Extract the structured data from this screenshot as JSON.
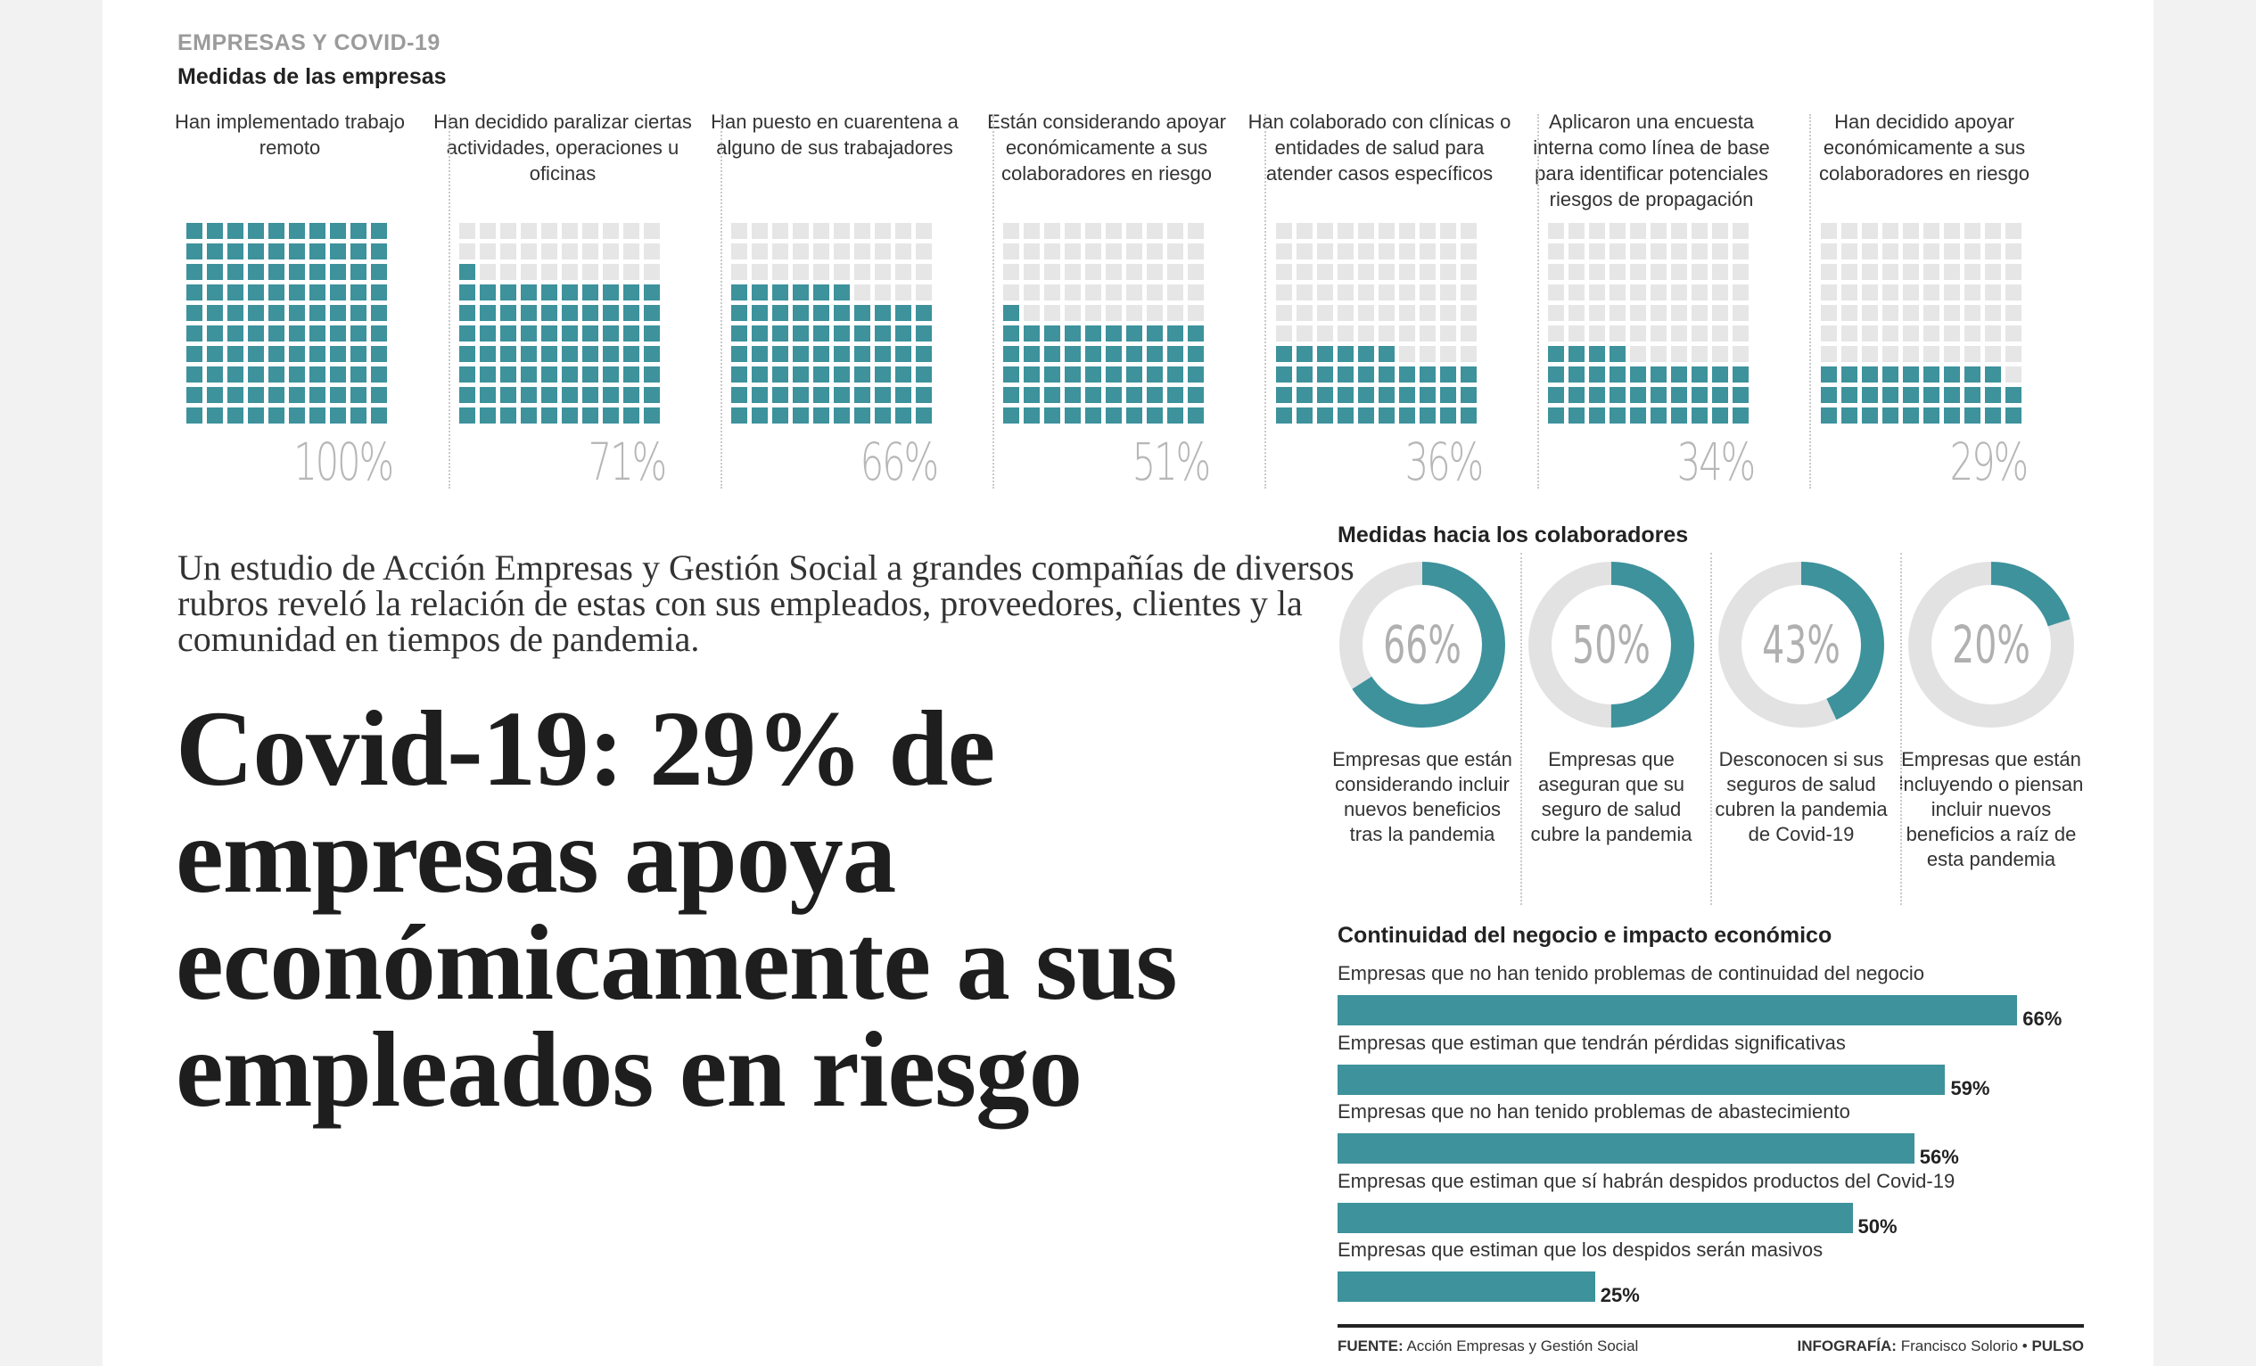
{
  "header": {
    "kicker": "EMPRESAS Y COVID-19",
    "section1_title": "Medidas de las empresas"
  },
  "colors": {
    "teal": "#3d929c",
    "grey_square": "#e6e6e6",
    "ring_grey": "#e2e2e2"
  },
  "chart_data": [
    {
      "type": "waffle",
      "title": "Medidas de las empresas",
      "items": [
        {
          "label": "Han implementado trabajo remoto",
          "value": 100,
          "value_label": "100%"
        },
        {
          "label": "Han decidido paralizar ciertas actividades, operaciones u oficinas",
          "value": 71,
          "value_label": "71%"
        },
        {
          "label": "Han puesto en cuarentena a alguno de sus trabajadores",
          "value": 66,
          "value_label": "66%"
        },
        {
          "label": "Están considerando apoyar económicamente a sus colaboradores en riesgo",
          "value": 51,
          "value_label": "51%"
        },
        {
          "label": "Han colaborado con clínicas o entidades de salud para atender casos específicos",
          "value": 36,
          "value_label": "36%"
        },
        {
          "label": "Aplicaron una encuesta interna como línea de base para identificar potenciales riesgos de propagación",
          "value": 34,
          "value_label": "34%"
        },
        {
          "label": "Han decidido apoyar económicamente a sus colaboradores en riesgo",
          "value": 29,
          "value_label": "29%"
        }
      ]
    },
    {
      "type": "pie",
      "title": "Medidas hacia los colaboradores",
      "items": [
        {
          "label": "Empresas que están considerando incluir nuevos beneficios tras la pandemia",
          "value": 66,
          "value_label": "66%"
        },
        {
          "label": "Empresas que aseguran que su seguro de salud cubre la pandemia",
          "value": 50,
          "value_label": "50%"
        },
        {
          "label": "Desconocen si sus seguros de salud cubren la pandemia de Covid-19",
          "value": 43,
          "value_label": "43%"
        },
        {
          "label": "Empresas que están incluyendo o piensan incluir nuevos beneficios a raíz de esta pandemia",
          "value": 20,
          "value_label": "20%"
        }
      ]
    },
    {
      "type": "bar",
      "orientation": "horizontal",
      "title": "Continuidad del negocio e impacto económico",
      "categories": [
        "Empresas que no han tenido problemas de continuidad del negocio",
        "Empresas que estiman que tendrán pérdidas significativas",
        "Empresas que no han tenido problemas de abastecimiento",
        "Empresas que estiman que sí habrán despidos productos del Covid-19",
        "Empresas que estiman que los despidos serán masivos"
      ],
      "values": [
        66,
        59,
        56,
        50,
        25
      ],
      "value_labels": [
        "66%",
        "59%",
        "56%",
        "50%",
        "25%"
      ],
      "xlim": [
        0,
        100
      ]
    }
  ],
  "article": {
    "intro": "Un estudio de Acción Empresas y Gestión Social a grandes compañías de diversos rubros reveló la relación de estas con sus empleados, proveedores, clientes y la comunidad en tiempos de pandemia.",
    "headline": "Covid-19: 29% de empresas apoya económicamente a sus empleados en riesgo"
  },
  "footer": {
    "source_label": "FUENTE:",
    "source_text": "Acción Empresas y Gestión Social",
    "credit_label": "INFOGRAFÍA:",
    "credit_text": "Francisco Solorio",
    "credit_sep": " • ",
    "publication": "PULSO"
  }
}
